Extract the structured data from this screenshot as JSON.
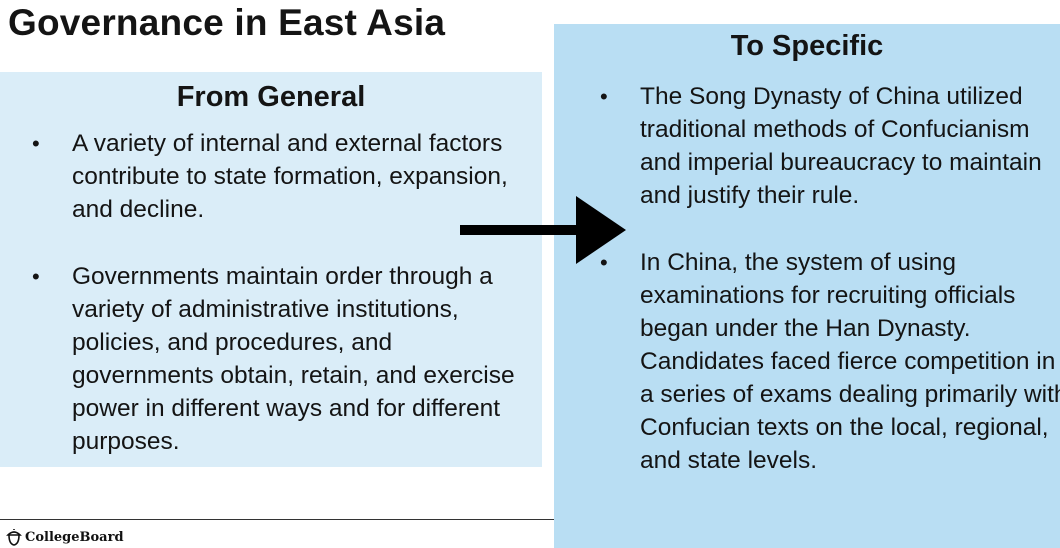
{
  "slide": {
    "title": "Governance in East Asia",
    "left_panel": {
      "heading": "From General",
      "bullets": [
        "A variety of internal and external factors contribute to state formation, expansion, and decline.",
        "Governments maintain order through a variety of administrative institutions, policies, and procedures, and governments obtain, retain, and exercise power in different ways and for different purposes."
      ]
    },
    "right_panel": {
      "heading": "To Specific",
      "bullets": [
        "The Song Dynasty of China utilized traditional methods of Confucianism and imperial bureaucracy to maintain and justify their rule.",
        "In China, the system of using examinations for recruiting officials began under the Han Dynasty. Candidates faced fierce competition in a series of exams dealing primarily with Confucian texts on the local, regional, and state levels."
      ]
    },
    "bullet_glyph": "•",
    "footer_logo_text": "CollegeBoard"
  },
  "colors": {
    "left_panel_bg": "#daedf8",
    "right_panel_bg": "#b9def3",
    "arrow": "#000000"
  },
  "icons": {
    "arrow": "right-arrow-icon",
    "logo": "acorn-icon"
  }
}
